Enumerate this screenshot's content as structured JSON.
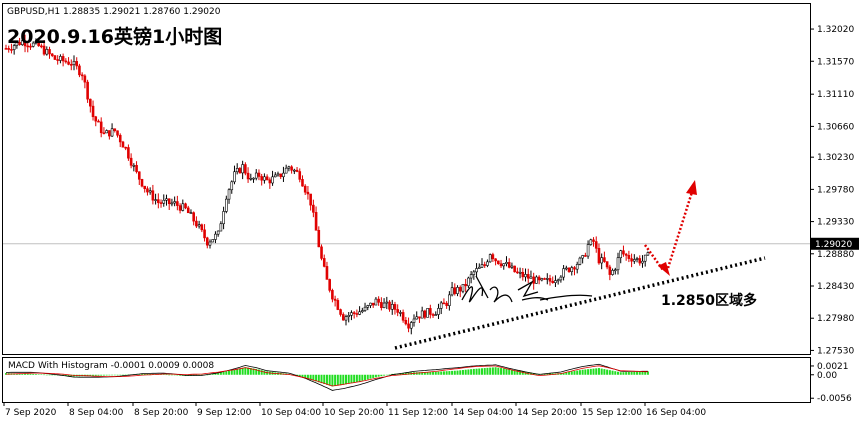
{
  "chart_data": [
    {
      "type": "candlestick",
      "symbol_header": "GBPUSD,H1  1.28835 1.29021 1.28760 1.29020",
      "title": "2020.9.16英镑1小时图",
      "current_price": 1.2902,
      "current_price_label": "1.29020",
      "ylim": [
        1.2748,
        1.3237
      ],
      "y_ticks": [
        {
          "label": "1.32020",
          "value": 1.3202
        },
        {
          "label": "1.31570",
          "value": 1.3157
        },
        {
          "label": "1.31110",
          "value": 1.3111
        },
        {
          "label": "1.30660",
          "value": 1.3066
        },
        {
          "label": "1.30230",
          "value": 1.3023
        },
        {
          "label": "1.29780",
          "value": 1.2978
        },
        {
          "label": "1.29330",
          "value": 1.2933
        },
        {
          "label": "1.28880",
          "value": 1.2888
        },
        {
          "label": "1.28430",
          "value": 1.2843
        },
        {
          "label": "1.27980",
          "value": 1.2798
        },
        {
          "label": "1.27530",
          "value": 1.2753
        }
      ],
      "x_ticks": [
        "7 Sep 2020",
        "8 Sep 04:00",
        "8 Sep 20:00",
        "9 Sep 12:00",
        "10 Sep 04:00",
        "10 Sep 20:00",
        "11 Sep 12:00",
        "14 Sep 04:00",
        "14 Sep 20:00",
        "15 Sep 12:00",
        "16 Sep 04:00"
      ],
      "close_path": [
        [
          0,
          1.3175
        ],
        [
          6,
          1.3185
        ],
        [
          12,
          1.3178
        ],
        [
          18,
          1.316
        ],
        [
          24,
          1.3155
        ],
        [
          28,
          1.314
        ],
        [
          32,
          1.308
        ],
        [
          36,
          1.3055
        ],
        [
          40,
          1.306
        ],
        [
          44,
          1.3035
        ],
        [
          48,
          1.3
        ],
        [
          52,
          1.2975
        ],
        [
          56,
          1.296
        ],
        [
          62,
          1.2958
        ],
        [
          66,
          1.295
        ],
        [
          70,
          1.293
        ],
        [
          74,
          1.2905
        ],
        [
          78,
          1.2915
        ],
        [
          81,
          1.297
        ],
        [
          84,
          1.2998
        ],
        [
          87,
          1.301
        ],
        [
          90,
          1.299
        ],
        [
          93,
          1.2998
        ],
        [
          96,
          1.299
        ],
        [
          100,
          1.2995
        ],
        [
          104,
          1.301
        ],
        [
          108,
          1.2998
        ],
        [
          112,
          1.296
        ],
        [
          114,
          1.292
        ],
        [
          116,
          1.288
        ],
        [
          118,
          1.285
        ],
        [
          120,
          1.283
        ],
        [
          122,
          1.2815
        ],
        [
          124,
          1.28
        ],
        [
          128,
          1.2805
        ],
        [
          132,
          1.281
        ],
        [
          136,
          1.2822
        ],
        [
          140,
          1.2815
        ],
        [
          144,
          1.281
        ],
        [
          148,
          1.279
        ],
        [
          150,
          1.28
        ],
        [
          154,
          1.2805
        ],
        [
          158,
          1.2808
        ],
        [
          162,
          1.282
        ],
        [
          164,
          1.2835
        ],
        [
          168,
          1.284
        ],
        [
          172,
          1.2862
        ],
        [
          176,
          1.2872
        ],
        [
          178,
          1.289
        ],
        [
          180,
          1.288
        ],
        [
          184,
          1.2872
        ],
        [
          188,
          1.286
        ],
        [
          192,
          1.2855
        ],
        [
          196,
          1.2848
        ],
        [
          200,
          1.285
        ],
        [
          204,
          1.286
        ],
        [
          208,
          1.287
        ],
        [
          212,
          1.288
        ],
        [
          214,
          1.29
        ],
        [
          216,
          1.2905
        ],
        [
          218,
          1.288
        ],
        [
          220,
          1.2875
        ],
        [
          222,
          1.2858
        ],
        [
          224,
          1.287
        ],
        [
          226,
          1.289
        ],
        [
          228,
          1.2885
        ],
        [
          232,
          1.288
        ],
        [
          234,
          1.2878
        ],
        [
          236,
          1.2884
        ]
      ],
      "annotations": {
        "level_label": "1.2850区域多",
        "signature": "signature"
      }
    },
    {
      "type": "bar",
      "indicator_label": "MACD With Histogram -0.0001 0.0009 0.0008",
      "ylim": [
        -0.0065,
        0.004
      ],
      "y_ticks": [
        {
          "label": "0.0021",
          "value": 0.0021
        },
        {
          "label": "0.00",
          "value": 0.0
        },
        {
          "label": "-0.0056",
          "value": -0.0056
        }
      ],
      "histogram_samples": [
        [
          0,
          0.0004
        ],
        [
          10,
          0.0002
        ],
        [
          20,
          -0.0002
        ],
        [
          25,
          -0.0004
        ],
        [
          30,
          -0.0003
        ],
        [
          40,
          -0.0001
        ],
        [
          50,
          0.0002
        ],
        [
          58,
          0.0001
        ],
        [
          66,
          -0.0003
        ],
        [
          72,
          -0.0002
        ],
        [
          78,
          0.0004
        ],
        [
          84,
          0.0012
        ],
        [
          88,
          0.0018
        ],
        [
          92,
          0.0014
        ],
        [
          96,
          0.0008
        ],
        [
          104,
          0.0002
        ],
        [
          110,
          -0.0008
        ],
        [
          116,
          -0.002
        ],
        [
          120,
          -0.0028
        ],
        [
          124,
          -0.0024
        ],
        [
          130,
          -0.0016
        ],
        [
          136,
          -0.0006
        ],
        [
          142,
          0.0002
        ],
        [
          150,
          0.0006
        ],
        [
          158,
          0.0007
        ],
        [
          166,
          0.001
        ],
        [
          172,
          0.0014
        ],
        [
          180,
          0.0018
        ],
        [
          188,
          0.001
        ],
        [
          196,
          0.0002
        ],
        [
          204,
          0.0004
        ],
        [
          212,
          0.0012
        ],
        [
          218,
          0.0016
        ],
        [
          226,
          0.0006
        ],
        [
          236,
          0.0008
        ]
      ]
    }
  ]
}
